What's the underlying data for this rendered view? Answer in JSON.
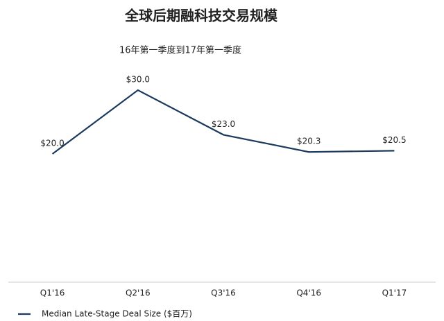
{
  "chart_data": {
    "type": "line",
    "title": "全球后期融科技交易规模",
    "subtitle": "16年第一季度到17年第一季度",
    "categories": [
      "Q1'16",
      "Q2'16",
      "Q3'16",
      "Q4'16",
      "Q1'17"
    ],
    "series": [
      {
        "name": "Median Late-Stage Deal Size ($百万)",
        "color": "#1b3a5c",
        "values": [
          20.0,
          30.0,
          23.0,
          20.3,
          20.5
        ],
        "value_labels": [
          "$20.0",
          "$30.0",
          "$23.0",
          "$20.3",
          "$20.5"
        ]
      }
    ],
    "ylim": [
      0,
      30
    ],
    "legend": "bottom-left"
  }
}
